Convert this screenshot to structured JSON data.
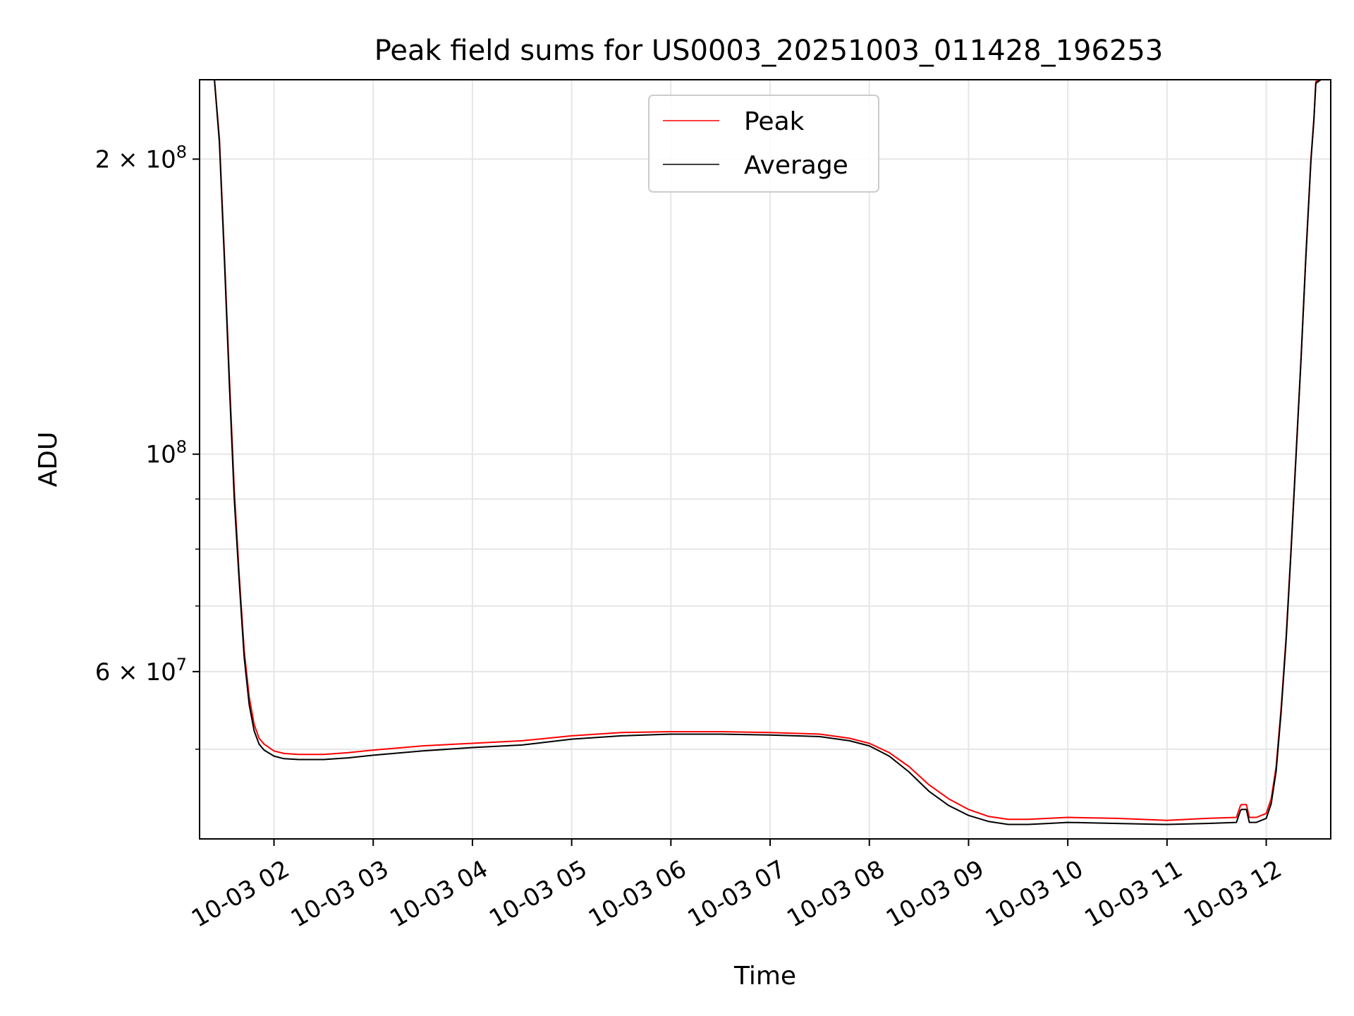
{
  "chart_data": {
    "type": "line",
    "title": "Peak field sums for US0003_20251003_011428_196253",
    "xlabel": "Time",
    "ylabel": "ADU",
    "xlim_hours": [
      1.25,
      12.65
    ],
    "ylim": [
      40500000,
      241000000
    ],
    "yscale": "log",
    "grid": true,
    "legend_position": "upper center",
    "x_ticks": [
      {
        "value": 2,
        "label": "10-03 02"
      },
      {
        "value": 3,
        "label": "10-03 03"
      },
      {
        "value": 4,
        "label": "10-03 04"
      },
      {
        "value": 5,
        "label": "10-03 05"
      },
      {
        "value": 6,
        "label": "10-03 06"
      },
      {
        "value": 7,
        "label": "10-03 07"
      },
      {
        "value": 8,
        "label": "10-03 08"
      },
      {
        "value": 9,
        "label": "10-03 09"
      },
      {
        "value": 10,
        "label": "10-03 10"
      },
      {
        "value": 11,
        "label": "10-03 11"
      },
      {
        "value": 12,
        "label": "10-03 12"
      }
    ],
    "y_major_ticks": [
      {
        "value": 60000000,
        "mantissa": "6",
        "exp": "7"
      },
      {
        "value": 100000000,
        "mantissa": "",
        "exp": "8"
      },
      {
        "value": 200000000,
        "mantissa": "2",
        "exp": "8"
      }
    ],
    "y_minor_ticks": [
      50000000,
      70000000,
      80000000,
      90000000,
      300000000
    ],
    "series": [
      {
        "name": "Peak",
        "color": "#ff0000",
        "x": [
          1.4,
          1.45,
          1.5,
          1.55,
          1.6,
          1.65,
          1.7,
          1.75,
          1.8,
          1.85,
          1.9,
          2.0,
          2.1,
          2.25,
          2.5,
          2.75,
          3.0,
          3.5,
          4.0,
          4.5,
          5.0,
          5.5,
          6.0,
          6.5,
          7.0,
          7.5,
          7.8,
          8.0,
          8.2,
          8.4,
          8.6,
          8.8,
          9.0,
          9.2,
          9.4,
          9.6,
          9.8,
          10.0,
          10.5,
          11.0,
          11.4,
          11.7,
          11.74,
          11.75,
          11.8,
          11.83,
          11.9,
          12.0,
          12.05,
          12.1,
          12.15,
          12.2,
          12.25,
          12.3,
          12.35,
          12.4,
          12.45,
          12.48,
          12.5,
          12.55
        ],
        "y": [
          241000000,
          210000000,
          160000000,
          120000000,
          92000000,
          75000000,
          63000000,
          56500000,
          53000000,
          51300000,
          50600000,
          49800000,
          49500000,
          49400000,
          49400000,
          49600000,
          49900000,
          50400000,
          50700000,
          51000000,
          51600000,
          52000000,
          52100000,
          52100000,
          52000000,
          51800000,
          51300000,
          50700000,
          49600000,
          48000000,
          46000000,
          44500000,
          43400000,
          42700000,
          42400000,
          42400000,
          42500000,
          42600000,
          42500000,
          42300000,
          42500000,
          42600000,
          43800000,
          43900000,
          43900000,
          42600000,
          42600000,
          43000000,
          44500000,
          48000000,
          55000000,
          65000000,
          80000000,
          100000000,
          125000000,
          160000000,
          200000000,
          220000000,
          240000000,
          241000000
        ]
      },
      {
        "name": "Average",
        "color": "#000000",
        "x": [
          1.4,
          1.45,
          1.5,
          1.55,
          1.6,
          1.65,
          1.7,
          1.75,
          1.8,
          1.85,
          1.9,
          2.0,
          2.1,
          2.25,
          2.5,
          2.75,
          3.0,
          3.5,
          4.0,
          4.5,
          5.0,
          5.5,
          6.0,
          6.5,
          7.0,
          7.5,
          7.8,
          8.0,
          8.2,
          8.4,
          8.6,
          8.8,
          9.0,
          9.2,
          9.4,
          9.6,
          9.8,
          10.0,
          10.5,
          11.0,
          11.4,
          11.7,
          11.74,
          11.75,
          11.8,
          11.83,
          11.9,
          12.0,
          12.05,
          12.1,
          12.15,
          12.2,
          12.25,
          12.3,
          12.35,
          12.4,
          12.45,
          12.48,
          12.5,
          12.55
        ],
        "y": [
          241000000,
          208000000,
          158000000,
          118000000,
          90000000,
          74000000,
          62000000,
          55500000,
          52200000,
          50600000,
          49900000,
          49200000,
          48900000,
          48800000,
          48800000,
          49000000,
          49300000,
          49800000,
          50200000,
          50500000,
          51200000,
          51600000,
          51800000,
          51800000,
          51700000,
          51500000,
          51000000,
          50400000,
          49200000,
          47400000,
          45300000,
          43800000,
          42800000,
          42200000,
          41900000,
          41900000,
          42000000,
          42100000,
          42000000,
          41900000,
          42000000,
          42100000,
          43300000,
          43400000,
          43400000,
          42100000,
          42100000,
          42500000,
          44000000,
          47500000,
          54500000,
          64500000,
          79500000,
          99500000,
          124500000,
          159000000,
          199000000,
          219000000,
          239000000,
          241000000
        ]
      }
    ]
  }
}
